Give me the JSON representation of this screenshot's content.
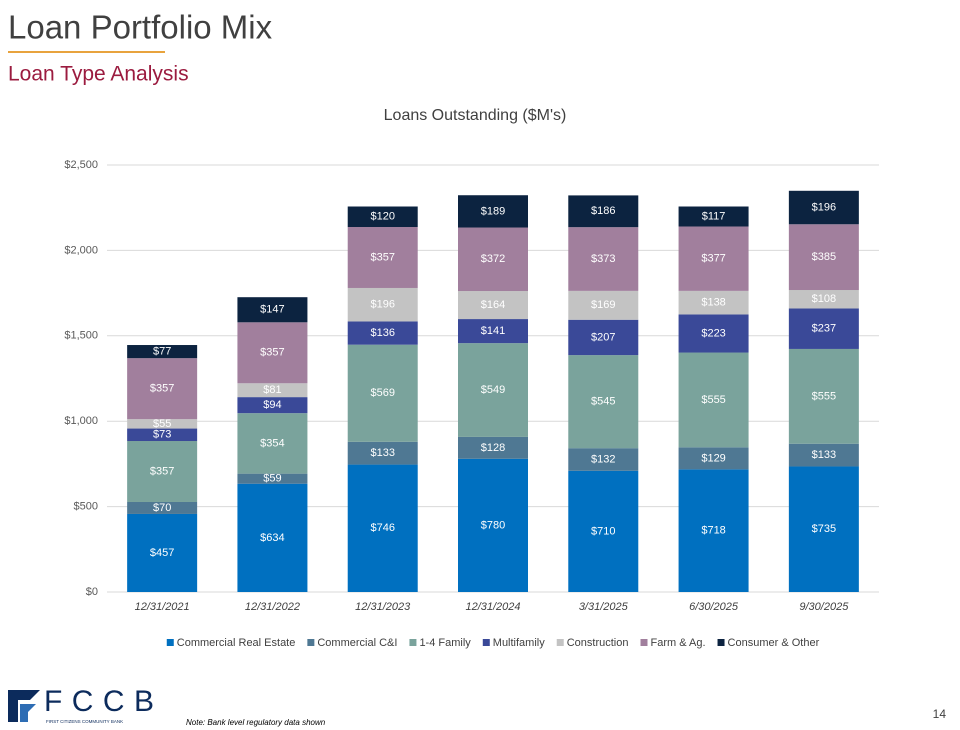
{
  "slide": {
    "title": "Loan Portfolio Mix",
    "subtitle": "Loan Type Analysis",
    "note": "Note: Bank level regulatory data shown",
    "page_number": "14",
    "logo_text": "FCCB",
    "logo_subtext": "FIRST CITIZENS COMMUNITY BANK"
  },
  "chart_data": {
    "type": "stacked_bar",
    "title": "Loans Outstanding ($M's)",
    "categories": [
      "12/31/2021",
      "12/31/2022",
      "12/31/2023",
      "12/31/2024",
      "3/31/2025",
      "6/30/2025",
      "9/30/2025"
    ],
    "ylim": [
      0,
      2500
    ],
    "yticks": [
      {
        "value": 0,
        "label": "$0"
      },
      {
        "value": 500,
        "label": "$500"
      },
      {
        "value": 1000,
        "label": "$1,000"
      },
      {
        "value": 1500,
        "label": "$1,500"
      },
      {
        "value": 2000,
        "label": "$2,000"
      },
      {
        "value": 2500,
        "label": "$2,500"
      }
    ],
    "grid": true,
    "legend": "bottom",
    "series": [
      {
        "name": "Commercial Real Estate",
        "color": "#0070c0",
        "values": [
          457,
          634,
          746,
          780,
          710,
          718,
          735
        ],
        "value_labels": [
          "$457",
          "$634",
          "$746",
          "$780",
          "$710",
          "$718",
          "$735"
        ]
      },
      {
        "name": "Commercial C&I",
        "color": "#4f7893",
        "values": [
          70,
          59,
          133,
          128,
          132,
          129,
          133
        ],
        "value_labels": [
          "$70",
          "$59",
          "$133",
          "$128",
          "$132",
          "$129",
          "$133"
        ]
      },
      {
        "name": "1-4 Family",
        "color": "#7aa39c",
        "values": [
          357,
          354,
          569,
          549,
          545,
          555,
          555
        ],
        "value_labels": [
          "$357",
          "$354",
          "$569",
          "$549",
          "$545",
          "$555",
          "$555"
        ]
      },
      {
        "name": "Multifamily",
        "color": "#3a4998",
        "values": [
          73,
          94,
          136,
          141,
          207,
          223,
          237
        ],
        "value_labels": [
          "$73",
          "$94",
          "$136",
          "$141",
          "$207",
          "$223",
          "$237"
        ]
      },
      {
        "name": "Construction",
        "color": "#c3c3c3",
        "values": [
          55,
          81,
          196,
          164,
          169,
          138,
          108
        ],
        "value_labels": [
          "$55",
          "$81",
          "$196",
          "$164",
          "$169",
          "$138",
          "$108"
        ]
      },
      {
        "name": "Farm & Ag.",
        "color": "#a17f9d",
        "values": [
          357,
          357,
          357,
          372,
          373,
          377,
          385
        ],
        "value_labels": [
          "$357",
          "$357",
          "$357",
          "$372",
          "$373",
          "$377",
          "$385"
        ]
      },
      {
        "name": "Consumer & Other",
        "color": "#0c2340",
        "values": [
          77,
          147,
          120,
          189,
          186,
          117,
          196
        ],
        "value_labels": [
          "$77",
          "$147",
          "$120",
          "$189",
          "$186",
          "$117",
          "$196"
        ]
      }
    ]
  }
}
